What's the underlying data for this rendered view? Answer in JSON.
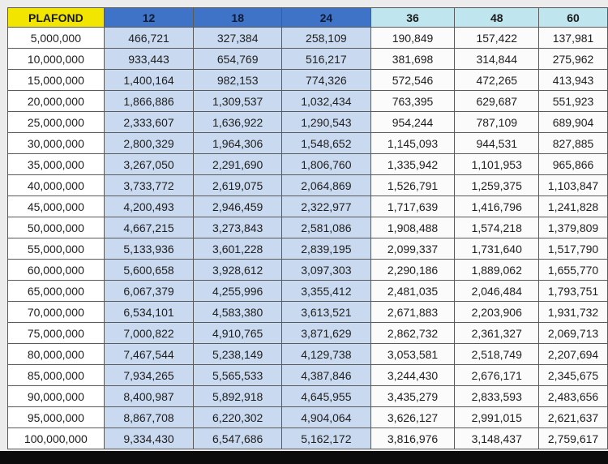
{
  "headers": [
    "PLAFOND",
    "12",
    "18",
    "24",
    "36",
    "48",
    "60"
  ],
  "rows": [
    [
      "5,000,000",
      "466,721",
      "327,384",
      "258,109",
      "190,849",
      "157,422",
      "137,981"
    ],
    [
      "10,000,000",
      "933,443",
      "654,769",
      "516,217",
      "381,698",
      "314,844",
      "275,962"
    ],
    [
      "15,000,000",
      "1,400,164",
      "982,153",
      "774,326",
      "572,546",
      "472,265",
      "413,943"
    ],
    [
      "20,000,000",
      "1,866,886",
      "1,309,537",
      "1,032,434",
      "763,395",
      "629,687",
      "551,923"
    ],
    [
      "25,000,000",
      "2,333,607",
      "1,636,922",
      "1,290,543",
      "954,244",
      "787,109",
      "689,904"
    ],
    [
      "30,000,000",
      "2,800,329",
      "1,964,306",
      "1,548,652",
      "1,145,093",
      "944,531",
      "827,885"
    ],
    [
      "35,000,000",
      "3,267,050",
      "2,291,690",
      "1,806,760",
      "1,335,942",
      "1,101,953",
      "965,866"
    ],
    [
      "40,000,000",
      "3,733,772",
      "2,619,075",
      "2,064,869",
      "1,526,791",
      "1,259,375",
      "1,103,847"
    ],
    [
      "45,000,000",
      "4,200,493",
      "2,946,459",
      "2,322,977",
      "1,717,639",
      "1,416,796",
      "1,241,828"
    ],
    [
      "50,000,000",
      "4,667,215",
      "3,273,843",
      "2,581,086",
      "1,908,488",
      "1,574,218",
      "1,379,809"
    ],
    [
      "55,000,000",
      "5,133,936",
      "3,601,228",
      "2,839,195",
      "2,099,337",
      "1,731,640",
      "1,517,790"
    ],
    [
      "60,000,000",
      "5,600,658",
      "3,928,612",
      "3,097,303",
      "2,290,186",
      "1,889,062",
      "1,655,770"
    ],
    [
      "65,000,000",
      "6,067,379",
      "4,255,996",
      "3,355,412",
      "2,481,035",
      "2,046,484",
      "1,793,751"
    ],
    [
      "70,000,000",
      "6,534,101",
      "4,583,380",
      "3,613,521",
      "2,671,883",
      "2,203,906",
      "1,931,732"
    ],
    [
      "75,000,000",
      "7,000,822",
      "4,910,765",
      "3,871,629",
      "2,862,732",
      "2,361,327",
      "2,069,713"
    ],
    [
      "80,000,000",
      "7,467,544",
      "5,238,149",
      "4,129,738",
      "3,053,581",
      "2,518,749",
      "2,207,694"
    ],
    [
      "85,000,000",
      "7,934,265",
      "5,565,533",
      "4,387,846",
      "3,244,430",
      "2,676,171",
      "2,345,675"
    ],
    [
      "90,000,000",
      "8,400,987",
      "5,892,918",
      "4,645,955",
      "3,435,279",
      "2,833,593",
      "2,483,656"
    ],
    [
      "95,000,000",
      "8,867,708",
      "6,220,302",
      "4,904,064",
      "3,626,127",
      "2,991,015",
      "2,621,637"
    ],
    [
      "100,000,000",
      "9,334,430",
      "6,547,686",
      "5,162,172",
      "3,816,976",
      "3,148,437",
      "2,759,617"
    ]
  ],
  "colors": {
    "plafond_header": "#f2e600",
    "blue_header": "#3f73c7",
    "light_header": "#bfe6ee",
    "blue_cells": "#c9daf0",
    "white_cells": "#fbfbfb"
  }
}
